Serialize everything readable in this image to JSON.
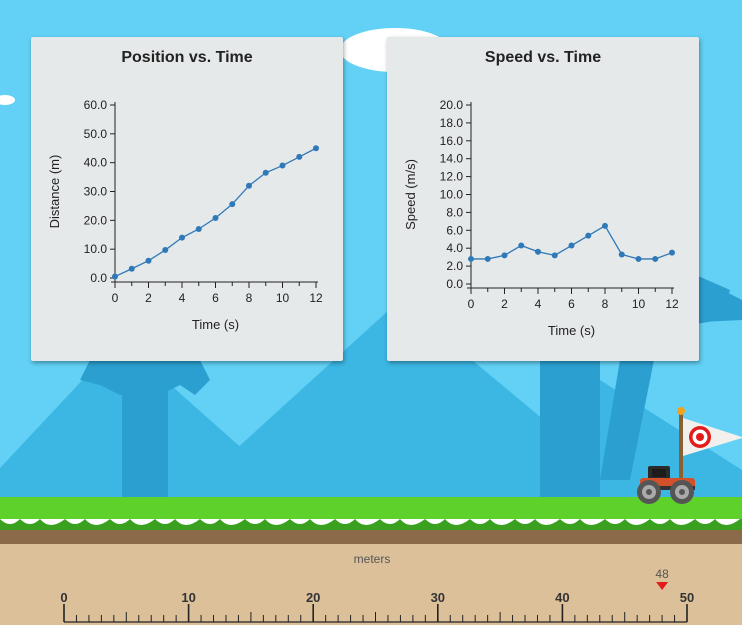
{
  "colors": {
    "sky": "#62d1f5",
    "mountain": "#3cb6e3",
    "tree": "#2a9fd0",
    "grass": "#5ed12b",
    "grass_dark": "#3aa020",
    "dirt": "#8a6a48",
    "ruler": "#dcc09a",
    "series": "#2f79b8",
    "marker": "#e31b1b"
  },
  "charts": [
    {
      "title": "Position vs. Time",
      "chart_data": {
        "type": "line",
        "title": "Position vs. Time",
        "xlabel": "Time (s)",
        "ylabel": "Distance (m)",
        "xlim": [
          0,
          12
        ],
        "ylim": [
          0,
          60
        ],
        "x_ticks": [
          "0",
          "2",
          "4",
          "6",
          "8",
          "10",
          "12"
        ],
        "y_ticks": [
          "0.0",
          "10.0",
          "20.0",
          "30.0",
          "40.0",
          "50.0",
          "60.0"
        ],
        "y_tick_values": [
          0,
          10,
          20,
          30,
          40,
          50,
          60
        ],
        "x_tick_values": [
          0,
          2,
          4,
          6,
          8,
          10,
          12
        ],
        "grid": false,
        "series": [
          {
            "x": [
              0,
              1,
              2,
              3,
              4,
              5,
              6,
              7,
              8,
              9,
              10,
              11,
              12
            ],
            "values": [
              0.5,
              3.2,
              6.0,
              9.7,
              14.0,
              17.0,
              20.8,
              25.6,
              32.0,
              36.5,
              39.0,
              42.0,
              45.0
            ]
          }
        ]
      }
    },
    {
      "title": "Speed vs. Time",
      "chart_data": {
        "type": "line",
        "title": "Speed vs. Time",
        "xlabel": "Time (s)",
        "ylabel": "Speed (m/s)",
        "xlim": [
          0,
          12
        ],
        "ylim": [
          0,
          20
        ],
        "x_ticks": [
          "0",
          "2",
          "4",
          "6",
          "8",
          "10",
          "12"
        ],
        "y_ticks": [
          "0.0",
          "2.0",
          "4.0",
          "6.0",
          "8.0",
          "10.0",
          "12.0",
          "14.0",
          "16.0",
          "18.0",
          "20.0"
        ],
        "y_tick_values": [
          0,
          2,
          4,
          6,
          8,
          10,
          12,
          14,
          16,
          18,
          20
        ],
        "x_tick_values": [
          0,
          2,
          4,
          6,
          8,
          10,
          12
        ],
        "grid": false,
        "series": [
          {
            "x": [
              0,
              1,
              2,
              3,
              4,
              5,
              6,
              7,
              8,
              9,
              10,
              11,
              12
            ],
            "values": [
              2.8,
              2.8,
              3.2,
              4.3,
              3.6,
              3.2,
              4.3,
              5.4,
              6.5,
              3.3,
              2.8,
              2.8,
              3.5
            ]
          }
        ]
      }
    }
  ],
  "ruler": {
    "unit_label": "meters",
    "min": 0,
    "max": 50,
    "major_labels": [
      "0",
      "10",
      "20",
      "30",
      "40",
      "50"
    ],
    "major_values": [
      0,
      10,
      20,
      30,
      40,
      50
    ],
    "marker_label": "48",
    "marker_value": 48
  },
  "icons": {
    "flag": "target-flag-icon",
    "car": "buggy-car-icon"
  }
}
